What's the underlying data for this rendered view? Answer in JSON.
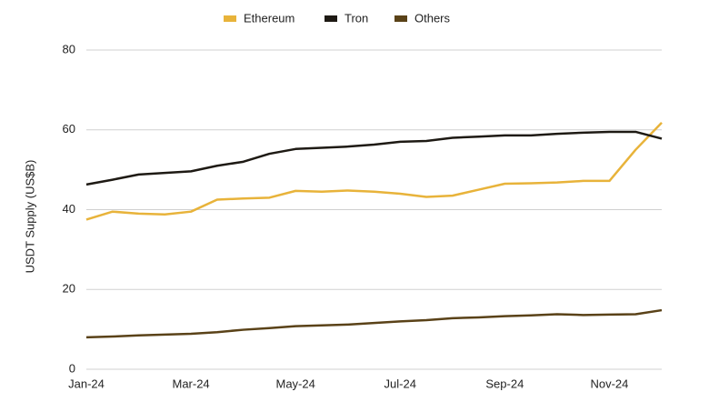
{
  "chart_data": {
    "type": "line",
    "y_label": "USDT Supply (US$B)",
    "categories": [
      "Jan-24",
      null,
      null,
      null,
      "Mar-24",
      null,
      null,
      null,
      "May-24",
      null,
      null,
      null,
      "Jul-24",
      null,
      null,
      null,
      "Sep-24",
      null,
      null,
      null,
      "Nov-24",
      null,
      null
    ],
    "series": [
      {
        "name": "Ethereum",
        "color": "#e8b33a",
        "values": [
          37.5,
          39.5,
          39,
          38.8,
          39.5,
          42.5,
          42.8,
          43,
          44.7,
          44.5,
          44.8,
          44.5,
          44,
          43.2,
          43.5,
          45,
          46.5,
          46.6,
          46.8,
          47.2,
          47.2,
          55,
          61.8
        ]
      },
      {
        "name": "Tron",
        "color": "#1e1a14",
        "values": [
          46.3,
          47.5,
          48.8,
          49.2,
          49.6,
          51,
          52,
          54,
          55.2,
          55.5,
          55.8,
          56.3,
          57,
          57.2,
          58,
          58.3,
          58.6,
          58.6,
          59,
          59.3,
          59.5,
          59.5,
          57.8
        ]
      },
      {
        "name": "Others",
        "color": "#5a4218",
        "values": [
          8,
          8.2,
          8.5,
          8.7,
          8.9,
          9.3,
          9.9,
          10.3,
          10.8,
          11,
          11.2,
          11.6,
          12,
          12.3,
          12.8,
          13,
          13.3,
          13.5,
          13.8,
          13.6,
          13.7,
          13.8,
          14.8
        ]
      }
    ],
    "ylim": [
      0,
      80
    ],
    "yticks": [
      0,
      20,
      40,
      60,
      80
    ],
    "grid": true,
    "legend": "top"
  }
}
